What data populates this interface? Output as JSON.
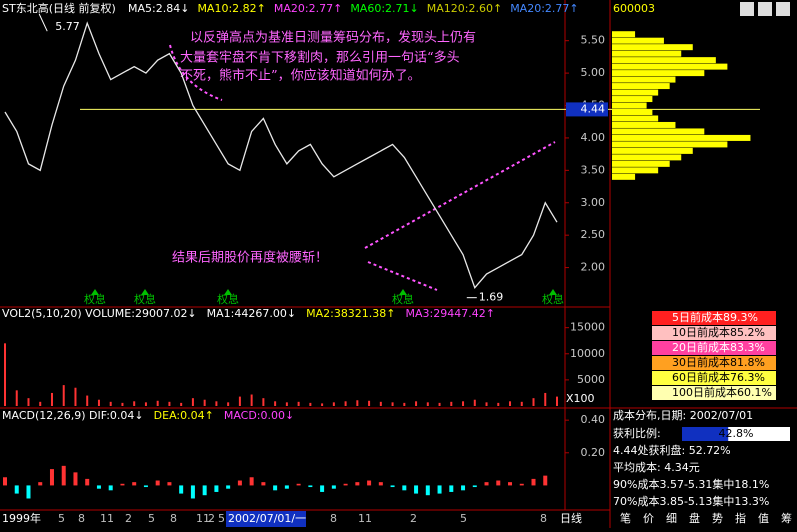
{
  "header": {
    "security": "600003",
    "title": "ST东北高(日线 前复权)",
    "ma": [
      {
        "text": "MA5:2.84↓",
        "color": "#ffffff"
      },
      {
        "text": "MA10:2.82↑",
        "color": "#ffff00"
      },
      {
        "text": "MA20:2.77↑",
        "color": "#ff44ff"
      },
      {
        "text": "MA60:2.71↓",
        "color": "#00ff00"
      },
      {
        "text": "MA120:2.60↑",
        "color": "#cccc00"
      },
      {
        "text": "MA20:2.77↑",
        "color": "#4488ff"
      }
    ]
  },
  "chart_data": [
    {
      "type": "line",
      "color": "#e8e8e8",
      "ylim": [
        1.5,
        5.85
      ],
      "yticks": [
        {
          "value": 2,
          "label": "2.00"
        },
        {
          "value": 2.5,
          "label": "2.50"
        },
        {
          "value": 3,
          "label": "3.00"
        },
        {
          "value": 3.5,
          "label": "3.50"
        },
        {
          "value": 4,
          "label": "4.00"
        },
        {
          "value": 4.5,
          "label": "4.50"
        },
        {
          "value": 5,
          "label": "5.00"
        },
        {
          "value": 5.5,
          "label": "5.50"
        }
      ],
      "values": [
        4.4,
        4.1,
        3.6,
        3.5,
        4.2,
        4.8,
        5.2,
        5.77,
        5.3,
        4.9,
        5.0,
        5.1,
        5.0,
        5.2,
        5.3,
        5.0,
        4.5,
        4.2,
        3.9,
        3.6,
        3.5,
        4.1,
        4.3,
        3.9,
        3.6,
        3.8,
        3.9,
        3.6,
        3.4,
        3.5,
        3.6,
        3.7,
        3.8,
        3.9,
        3.7,
        3.4,
        3.1,
        2.8,
        2.5,
        2.2,
        1.69,
        1.9,
        2.0,
        2.1,
        2.2,
        2.5,
        3.0,
        2.7
      ],
      "high_label": 5.77,
      "low_label": 1.69,
      "ref_line": 4.44,
      "ref_color": "#ffff66",
      "markers": [
        "权息",
        "权息",
        "权息",
        "权息",
        "权息"
      ]
    },
    {
      "type": "bar",
      "title": "VOL2(5,10,20) VOLUME:29007.02↓",
      "title_parts": [
        {
          "text": "MA1:44267.00↓",
          "color": "#ffffff"
        },
        {
          "text": "MA2:38321.38↑",
          "color": "#ffff00"
        },
        {
          "text": "MA3:29447.42↑",
          "color": "#ff44ff"
        }
      ],
      "color": "#ff3333",
      "ylim": [
        0,
        18000
      ],
      "yticks": [
        5000,
        10000,
        15000
      ],
      "unit": "X100",
      "values": [
        12000,
        3000,
        1500,
        800,
        2500,
        4000,
        3500,
        2000,
        1200,
        800,
        600,
        900,
        700,
        1000,
        800,
        600,
        1500,
        1200,
        900,
        700,
        1800,
        2200,
        1500,
        900,
        700,
        800,
        600,
        500,
        700,
        900,
        1100,
        1000,
        800,
        700,
        600,
        900,
        700,
        600,
        800,
        900,
        1200,
        700,
        600,
        900,
        800,
        1500,
        2500,
        1800
      ]
    },
    {
      "type": "macd",
      "title": "MACD(12,26,9) DIF:0.04↓",
      "title_parts": [
        {
          "text": "DEA:0.04↑",
          "color": "#ffff00"
        },
        {
          "text": "MACD:0.00↓",
          "color": "#ff44ff"
        }
      ],
      "pos_color": "#ff3333",
      "neg_color": "#00ffff",
      "ylim": [
        -0.12,
        0.45
      ],
      "yticks": [
        {
          "value": 0.2,
          "label": "0.20"
        },
        {
          "value": 0.4,
          "label": "0.40"
        }
      ],
      "values": [
        0.05,
        -0.05,
        -0.08,
        0.02,
        0.1,
        0.12,
        0.08,
        0.04,
        -0.02,
        -0.03,
        0.01,
        0.02,
        -0.01,
        0.03,
        0.02,
        -0.05,
        -0.08,
        -0.06,
        -0.04,
        -0.02,
        0.03,
        0.05,
        0.02,
        -0.03,
        -0.02,
        0.01,
        -0.01,
        -0.04,
        -0.02,
        0.01,
        0.02,
        0.03,
        0.02,
        -0.01,
        -0.03,
        -0.05,
        -0.06,
        -0.05,
        -0.04,
        -0.03,
        -0.01,
        0.02,
        0.03,
        0.02,
        0.01,
        0.04,
        0.06,
        0.0
      ]
    },
    {
      "type": "profile",
      "color": "#ffff00",
      "xlim": [
        0,
        130
      ],
      "prices": [
        5.6,
        5.5,
        5.4,
        5.3,
        5.2,
        5.1,
        5.0,
        4.9,
        4.8,
        4.7,
        4.6,
        4.5,
        4.4,
        4.3,
        4.2,
        4.1,
        4.0,
        3.9,
        3.8,
        3.7,
        3.6,
        3.5,
        3.4
      ],
      "values": [
        20,
        45,
        70,
        60,
        90,
        100,
        80,
        55,
        50,
        40,
        35,
        30,
        35,
        40,
        55,
        80,
        120,
        100,
        70,
        60,
        50,
        40,
        20
      ]
    }
  ],
  "annotations": [
    "以反弹高点为基准日测量筹码分布，发现头上仍有",
    "大量套牢盘不肯下移割肉，那么引用一句话“多头",
    "不死，熊市不止”，你应该知道如何办了。",
    "结果后期股价再度被腰斩！"
  ],
  "time_axis": [
    "1999年",
    "5",
    "8",
    "11",
    "2",
    "5",
    "8",
    "11",
    "2",
    "5",
    "2002/07/01/一",
    "8",
    "11",
    "2",
    "5",
    "8"
  ],
  "period": "日线",
  "toolbar": [
    "笔",
    "价",
    "细",
    "盘",
    "势",
    "指",
    "值",
    "筹"
  ],
  "cost_table": [
    {
      "text": "5日前成本89.3%",
      "color": "#ff2020"
    },
    {
      "text": "10日前成本85.2%",
      "color": "#ffc0c0"
    },
    {
      "text": "20日前成本83.3%",
      "color": "#ff40a0"
    },
    {
      "text": "30日前成本81.8%",
      "color": "#ffa020"
    },
    {
      "text": "60日前成本76.3%",
      "color": "#ffff40"
    },
    {
      "text": "100日前成本60.1%",
      "color": "#ffffb0"
    }
  ],
  "info": {
    "date": "成本分布,日期: 2002/07/01",
    "profit_label": "获利比例:",
    "profit": 42.8,
    "profit_label_value": "42.8%",
    "lines": [
      "4.44处获利盘: 52.72%",
      "平均成本: 4.34元",
      "90%成本3.57-5.31集中18.1%",
      "70%成本3.85-5.13集中13.3%"
    ]
  }
}
